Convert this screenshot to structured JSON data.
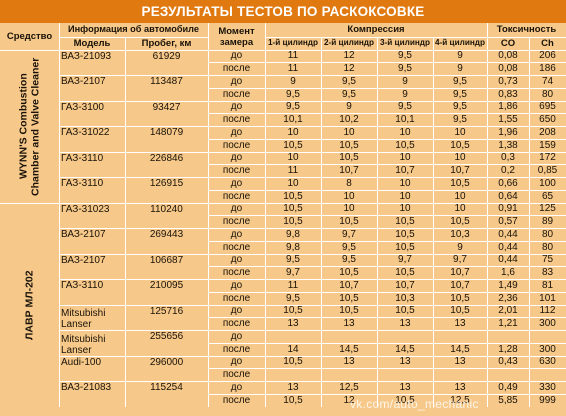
{
  "title": "РЕЗУЛЬТАТЫ ТЕСТОВ ПО РАСКОКСОВКЕ",
  "headers": {
    "sredstvo": "Средство",
    "info": "Информация об автомобиле",
    "model": "Модель",
    "probeg": "Пробег, км",
    "moment": "Момент замера",
    "kompressiya": "Компрессия",
    "cyl": [
      "1-й цилиндр",
      "2-й цилиндр",
      "3-й цилиндр",
      "4-й цилиндр"
    ],
    "toksichnost": "Токсичность",
    "co": "CO",
    "ch": "Ch"
  },
  "groups": [
    {
      "name": "WYNN'S Combustion Chamber and Valve Cleaner",
      "start": 0,
      "end": 12
    },
    {
      "name": "ЛАВР МЛ-202",
      "start": 12,
      "end": 28
    }
  ],
  "cars": [
    {
      "model": "ВАЗ-21093",
      "probeg": "61929",
      "start": 0
    },
    {
      "model": "ВАЗ-2107",
      "probeg": "113487",
      "start": 2
    },
    {
      "model": "ГАЗ-3100",
      "probeg": "93427",
      "start": 4
    },
    {
      "model": "ГАЗ-31022",
      "probeg": "148079",
      "start": 6
    },
    {
      "model": "ГАЗ-3110",
      "probeg": "226846",
      "start": 8
    },
    {
      "model": "ГАЗ-3110",
      "probeg": "126915",
      "start": 10
    },
    {
      "model": "ГАЗ-31023",
      "probeg": "110240",
      "start": 12
    },
    {
      "model": "ВАЗ-2107",
      "probeg": "269443",
      "start": 14
    },
    {
      "model": "ВАЗ-2107",
      "probeg": "106687",
      "start": 16
    },
    {
      "model": "ГАЗ-3110",
      "probeg": "210095",
      "start": 18
    },
    {
      "model": "Mitsubishi Lanser",
      "probeg": "125716",
      "start": 20
    },
    {
      "model": "Mitsubishi Lanser",
      "probeg": "255656",
      "start": 22
    },
    {
      "model": "Audi-100",
      "probeg": "296000",
      "start": 24
    },
    {
      "model": "ВАЗ-21083",
      "probeg": "115254",
      "start": 26
    }
  ],
  "rows": [
    [
      "до",
      "11",
      "12",
      "9,5",
      "9",
      "0,08",
      "206"
    ],
    [
      "после",
      "11",
      "12",
      "9,5",
      "9",
      "0,08",
      "186"
    ],
    [
      "до",
      "9",
      "9,5",
      "9",
      "9,5",
      "0,73",
      "74"
    ],
    [
      "после",
      "9,5",
      "9,5",
      "9",
      "9,5",
      "0,83",
      "80"
    ],
    [
      "до",
      "9,5",
      "9",
      "9,5",
      "9,5",
      "1,86",
      "695"
    ],
    [
      "после",
      "10,1",
      "10,2",
      "10,1",
      "9,5",
      "1,55",
      "650"
    ],
    [
      "до",
      "10",
      "10",
      "10",
      "10",
      "1,96",
      "208"
    ],
    [
      "после",
      "10,5",
      "10,5",
      "10,5",
      "10,5",
      "1,38",
      "159"
    ],
    [
      "до",
      "10",
      "10,5",
      "10",
      "10",
      "0,3",
      "172"
    ],
    [
      "после",
      "11",
      "10,7",
      "10,7",
      "10,7",
      "0,2",
      "0,85"
    ],
    [
      "до",
      "10",
      "8",
      "10",
      "10,5",
      "0,66",
      "100"
    ],
    [
      "после",
      "10,5",
      "10",
      "10",
      "10",
      "0,64",
      "65"
    ],
    [
      "до",
      "10,5",
      "10",
      "10",
      "10",
      "0,91",
      "125"
    ],
    [
      "после",
      "10,5",
      "10,5",
      "10,5",
      "10,5",
      "0,57",
      "89"
    ],
    [
      "до",
      "9,8",
      "9,7",
      "10,5",
      "10,3",
      "0,44",
      "80"
    ],
    [
      "после",
      "9,8",
      "9,5",
      "10,5",
      "9",
      "0,44",
      "80"
    ],
    [
      "до",
      "9,5",
      "9,5",
      "9,7",
      "9,7",
      "0,44",
      "75"
    ],
    [
      "после",
      "9,7",
      "10,5",
      "10,5",
      "10,7",
      "1,6",
      "83"
    ],
    [
      "до",
      "11",
      "10,7",
      "10,7",
      "10,7",
      "1,49",
      "81"
    ],
    [
      "после",
      "9,5",
      "10,5",
      "10,3",
      "10,5",
      "2,36",
      "101"
    ],
    [
      "до",
      "10,5",
      "10,5",
      "10,5",
      "10,5",
      "2,01",
      "112"
    ],
    [
      "после",
      "13",
      "13",
      "13",
      "13",
      "1,21",
      "300"
    ],
    [
      "до",
      "",
      "",
      "",
      "",
      "",
      ""
    ],
    [
      "после",
      "14",
      "14,5",
      "14,5",
      "14,5",
      "1,28",
      "300"
    ],
    [
      "до",
      "10,5",
      "13",
      "13",
      "13",
      "0,43",
      "630"
    ],
    [
      "после",
      "",
      "",
      "",
      "",
      "",
      ""
    ],
    [
      "до",
      "13",
      "12,5",
      "13",
      "13",
      "0,49",
      "330"
    ],
    [
      "после",
      "10,5",
      "12",
      "10,5",
      "12,5",
      "5,85",
      "999"
    ]
  ],
  "watermark": "vk.com/auto_mechanic"
}
